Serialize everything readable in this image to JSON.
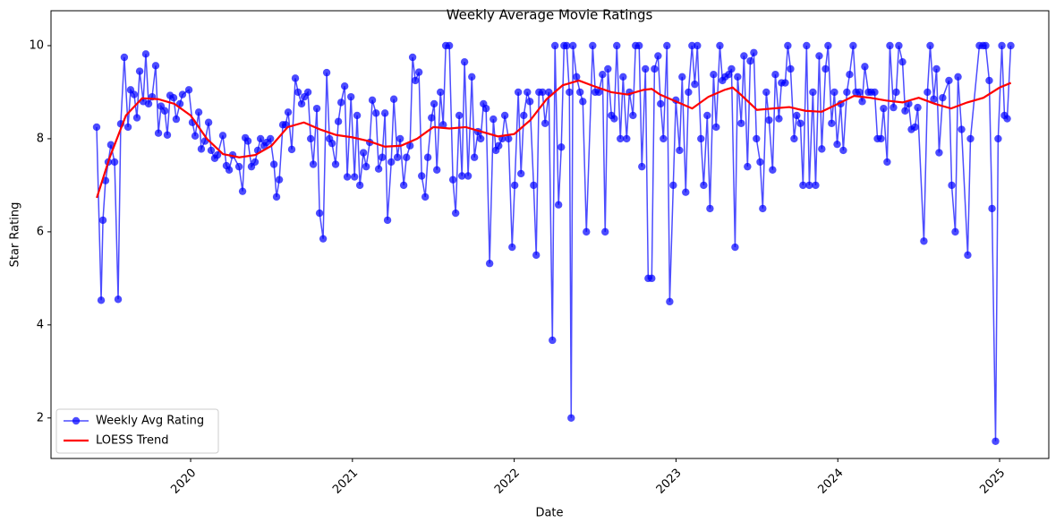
{
  "chart_data": {
    "type": "line",
    "title": "Weekly Average Movie Ratings",
    "xlabel": "Date",
    "ylabel": "Star Rating",
    "xlim": [
      2019.137,
      2025.304
    ],
    "ylim": [
      1.13,
      10.75
    ],
    "xticks": [
      2020,
      2021,
      2022,
      2023,
      2024,
      2025
    ],
    "yticks": [
      2,
      4,
      6,
      8,
      10
    ],
    "grid": false,
    "legend": "lower left",
    "series": [
      {
        "name": "Weekly Avg Rating",
        "color": "#0000ff",
        "marker": true,
        "x": [
          2019.419,
          2019.447,
          2019.458,
          2019.474,
          2019.491,
          2019.507,
          2019.53,
          2019.552,
          2019.568,
          2019.59,
          2019.613,
          2019.629,
          2019.651,
          2019.668,
          2019.685,
          2019.707,
          2019.723,
          2019.74,
          2019.762,
          2019.784,
          2019.801,
          2019.817,
          2019.84,
          2019.856,
          2019.873,
          2019.895,
          2019.911,
          2019.934,
          2019.95,
          2019.989,
          2020.011,
          2020.028,
          2020.05,
          2020.066,
          2020.089,
          2020.111,
          2020.127,
          2020.149,
          2020.166,
          2020.199,
          2020.221,
          2020.238,
          2020.26,
          2020.299,
          2020.321,
          2020.338,
          2020.354,
          2020.376,
          2020.398,
          2020.415,
          2020.432,
          2020.454,
          2020.47,
          2020.493,
          2020.515,
          2020.531,
          2020.548,
          2020.57,
          2020.587,
          2020.603,
          2020.625,
          2020.647,
          2020.664,
          2020.686,
          2020.703,
          2020.725,
          2020.742,
          2020.758,
          2020.78,
          2020.797,
          2020.819,
          2020.841,
          2020.858,
          2020.874,
          2020.896,
          2020.913,
          2020.93,
          2020.952,
          2020.968,
          2020.991,
          2021.013,
          2021.029,
          2021.046,
          2021.068,
          2021.085,
          2021.107,
          2021.123,
          2021.146,
          2021.162,
          2021.184,
          2021.201,
          2021.217,
          2021.24,
          2021.256,
          2021.278,
          2021.295,
          2021.317,
          2021.334,
          2021.356,
          2021.372,
          2021.389,
          2021.411,
          2021.428,
          2021.45,
          2021.466,
          2021.489,
          2021.505,
          2021.522,
          2021.544,
          2021.561,
          2021.577,
          2021.599,
          2021.621,
          2021.638,
          2021.66,
          2021.677,
          2021.693,
          2021.715,
          2021.738,
          2021.754,
          2021.776,
          2021.793,
          2021.81,
          2021.826,
          2021.848,
          2021.871,
          2021.887,
          2021.904,
          2021.926,
          2021.942,
          2021.965,
          2021.987,
          2022.003,
          2022.025,
          2022.042,
          2022.059,
          2022.081,
          2022.097,
          2022.12,
          2022.136,
          2022.153,
          2022.175,
          2022.191,
          2022.214,
          2022.236,
          2022.252,
          2022.274,
          2022.291,
          2022.308,
          2022.324,
          2022.341,
          2022.352,
          2022.363,
          2022.385,
          2022.407,
          2022.424,
          2022.446,
          2022.485,
          2022.501,
          2022.523,
          2022.546,
          2022.562,
          2022.579,
          2022.601,
          2022.618,
          2022.634,
          2022.656,
          2022.673,
          2022.695,
          2022.712,
          2022.734,
          2022.75,
          2022.772,
          2022.789,
          2022.811,
          2022.828,
          2022.85,
          2022.867,
          2022.889,
          2022.905,
          2022.922,
          2022.944,
          2022.961,
          2022.983,
          2022.999,
          2023.022,
          2023.038,
          2023.06,
          2023.077,
          2023.099,
          2023.116,
          2023.132,
          2023.154,
          2023.171,
          2023.193,
          2023.21,
          2023.232,
          2023.248,
          2023.271,
          2023.287,
          2023.304,
          2023.326,
          2023.343,
          2023.365,
          2023.381,
          2023.403,
          2023.42,
          2023.442,
          2023.459,
          2023.481,
          2023.497,
          2023.52,
          2023.536,
          2023.558,
          2023.575,
          2023.597,
          2023.614,
          2023.636,
          2023.652,
          2023.675,
          2023.691,
          2023.708,
          2023.73,
          2023.746,
          2023.769,
          2023.785,
          2023.807,
          2023.824,
          2023.846,
          2023.863,
          2023.885,
          2023.901,
          2023.924,
          2023.94,
          2023.962,
          2023.979,
          2023.996,
          2024.018,
          2024.034,
          2024.056,
          2024.073,
          2024.095,
          2024.112,
          2024.134,
          2024.151,
          2024.167,
          2024.189,
          2024.206,
          2024.228,
          2024.245,
          2024.267,
          2024.283,
          2024.305,
          2024.322,
          2024.344,
          2024.361,
          2024.377,
          2024.4,
          2024.416,
          2024.438,
          2024.455,
          2024.477,
          2024.494,
          2024.532,
          2024.554,
          2024.571,
          2024.593,
          2024.61,
          2024.626,
          2024.648,
          2024.687,
          2024.704,
          2024.726,
          2024.743,
          2024.765,
          2024.803,
          2024.82,
          2024.875,
          2024.898,
          2024.914,
          2024.936,
          2024.953,
          2024.975,
          2024.991,
          2025.014,
          2025.03,
          2025.047,
          2025.069
        ],
        "values": [
          8.25,
          4.53,
          6.25,
          7.1,
          7.5,
          7.87,
          7.5,
          4.55,
          8.32,
          9.75,
          8.25,
          9.05,
          8.95,
          8.45,
          9.45,
          8.8,
          9.82,
          8.75,
          8.9,
          9.57,
          8.12,
          8.7,
          8.6,
          8.08,
          8.93,
          8.88,
          8.42,
          8.75,
          8.95,
          9.05,
          8.35,
          8.06,
          8.57,
          7.78,
          7.95,
          8.35,
          7.75,
          7.58,
          7.65,
          8.07,
          7.42,
          7.33,
          7.65,
          7.4,
          6.87,
          8.02,
          7.95,
          7.4,
          7.5,
          7.75,
          8.0,
          7.85,
          7.92,
          8.0,
          7.45,
          6.75,
          7.12,
          8.3,
          8.3,
          8.57,
          7.77,
          9.3,
          9.0,
          8.75,
          8.9,
          9.0,
          8.0,
          7.45,
          8.65,
          6.4,
          5.85,
          9.42,
          8.0,
          7.9,
          7.45,
          8.37,
          8.78,
          9.13,
          7.18,
          8.9,
          7.18,
          8.5,
          7.0,
          7.7,
          7.4,
          7.92,
          8.83,
          8.55,
          7.35,
          7.6,
          8.55,
          6.25,
          7.5,
          8.85,
          7.6,
          8.0,
          7.0,
          7.6,
          7.85,
          9.75,
          9.25,
          9.43,
          7.2,
          6.75,
          7.6,
          8.45,
          8.75,
          7.33,
          9.0,
          8.3,
          10.0,
          10.0,
          7.12,
          6.4,
          8.5,
          7.2,
          9.65,
          7.2,
          9.33,
          7.6,
          8.15,
          8.0,
          8.75,
          8.65,
          5.32,
          8.42,
          7.75,
          7.85,
          8.0,
          8.5,
          8.0,
          5.67,
          7.0,
          9.0,
          7.25,
          8.5,
          9.0,
          8.8,
          7.0,
          5.5,
          9.0,
          9.0,
          8.33,
          9.0,
          3.67,
          10.0,
          6.58,
          7.82,
          10.0,
          10.0,
          9.0,
          2.0,
          10.0,
          9.33,
          9.0,
          8.8,
          6.0,
          10.0,
          9.0,
          9.0,
          9.38,
          6.0,
          9.5,
          8.5,
          8.43,
          10.0,
          8.0,
          9.33,
          8.0,
          9.0,
          8.5,
          10.0,
          10.0,
          7.4,
          9.5,
          5.0,
          5.0,
          9.5,
          9.78,
          8.75,
          8.0,
          10.0,
          4.5,
          7.0,
          8.83,
          7.75,
          9.33,
          6.85,
          9.0,
          10.0,
          9.17,
          10.0,
          8.0,
          7.0,
          8.5,
          6.5,
          9.38,
          8.25,
          10.0,
          9.25,
          9.33,
          9.38,
          9.5,
          5.67,
          9.33,
          8.33,
          9.78,
          7.4,
          9.67,
          9.85,
          8.0,
          7.5,
          6.5,
          9.0,
          8.4,
          7.33,
          9.38,
          8.43,
          9.2,
          9.2,
          10.0,
          9.5,
          8.0,
          8.5,
          8.33,
          7.0,
          10.0,
          7.0,
          9.0,
          7.0,
          9.78,
          7.78,
          9.5,
          10.0,
          8.33,
          9.0,
          7.88,
          8.75,
          7.75,
          9.0,
          9.38,
          10.0,
          9.0,
          9.0,
          8.8,
          9.55,
          9.0,
          9.0,
          9.0,
          8.0,
          8.0,
          8.65,
          7.5,
          10.0,
          8.67,
          9.0,
          10.0,
          9.65,
          8.6,
          8.75,
          8.2,
          8.25,
          8.67,
          5.8,
          9.0,
          10.0,
          8.85,
          9.5,
          7.7,
          8.88,
          9.25,
          7.0,
          6.0,
          9.33,
          8.2,
          5.5,
          8.0,
          10.0,
          10.0,
          10.0,
          9.25,
          6.5,
          1.5,
          8.0,
          10.0,
          8.5,
          8.43,
          10.0
        ]
      },
      {
        "name": "LOESS Trend",
        "color": "#ff0000",
        "marker": false,
        "x": [
          2019.42,
          2019.5,
          2019.6,
          2019.7,
          2019.8,
          2019.9,
          2020.0,
          2020.1,
          2020.2,
          2020.3,
          2020.4,
          2020.5,
          2020.6,
          2020.7,
          2020.8,
          2020.9,
          2021.0,
          2021.1,
          2021.2,
          2021.3,
          2021.4,
          2021.5,
          2021.6,
          2021.7,
          2021.8,
          2021.9,
          2022.0,
          2022.1,
          2022.2,
          2022.3,
          2022.4,
          2022.5,
          2022.6,
          2022.7,
          2022.8,
          2022.85,
          2022.9,
          2023.0,
          2023.1,
          2023.2,
          2023.3,
          2023.35,
          2023.4,
          2023.5,
          2023.6,
          2023.7,
          2023.8,
          2023.9,
          2024.0,
          2024.1,
          2024.2,
          2024.3,
          2024.4,
          2024.5,
          2024.6,
          2024.7,
          2024.8,
          2024.9,
          2025.0,
          2025.07
        ],
        "values": [
          6.73,
          7.6,
          8.5,
          8.87,
          8.85,
          8.75,
          8.5,
          8.0,
          7.67,
          7.6,
          7.65,
          7.85,
          8.25,
          8.35,
          8.2,
          8.08,
          8.03,
          7.95,
          7.83,
          7.85,
          8.0,
          8.25,
          8.22,
          8.25,
          8.15,
          8.05,
          8.1,
          8.4,
          8.85,
          9.15,
          9.25,
          9.12,
          9.0,
          8.95,
          9.05,
          9.07,
          8.95,
          8.8,
          8.65,
          8.9,
          9.05,
          9.1,
          8.95,
          8.62,
          8.65,
          8.68,
          8.6,
          8.58,
          8.75,
          8.92,
          8.88,
          8.82,
          8.78,
          8.88,
          8.75,
          8.65,
          8.78,
          8.88,
          9.1,
          9.2
        ]
      }
    ]
  }
}
